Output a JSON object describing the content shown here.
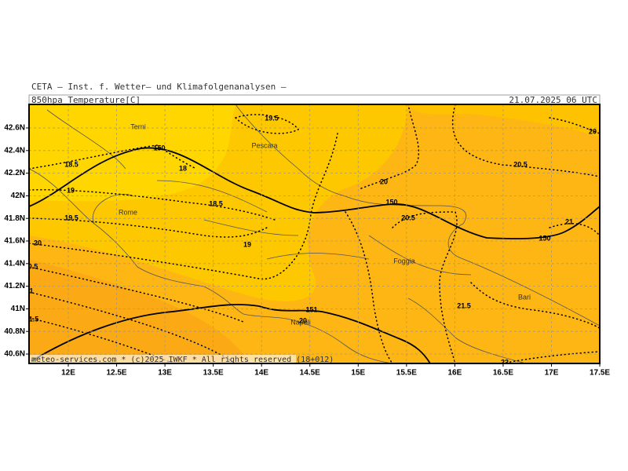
{
  "header": {
    "title": "CETA – Inst. f. Wetter– und Klimafolgenanalysen –",
    "field": "850hpa_Temperature[C]",
    "time": "21.07.2025 06 UTC"
  },
  "footer": "meteo-services.com * (c)2025 IWKF * All rights reserved (18+012)",
  "lat_ticks": [
    {
      "value": 42.6,
      "label": "42.6N"
    },
    {
      "value": 42.4,
      "label": "42.4N"
    },
    {
      "value": 42.2,
      "label": "42.2N"
    },
    {
      "value": 42,
      "label": "42N"
    },
    {
      "value": 41.8,
      "label": "41.8N"
    },
    {
      "value": 41.6,
      "label": "41.6N"
    },
    {
      "value": 41.4,
      "label": "41.4N"
    },
    {
      "value": 41.2,
      "label": "41.2N"
    },
    {
      "value": 41,
      "label": "41N"
    },
    {
      "value": 40.8,
      "label": "40.8N"
    },
    {
      "value": 40.6,
      "label": "40.6N"
    }
  ],
  "lon_ticks": [
    {
      "value": 12,
      "label": "12E"
    },
    {
      "value": 12.5,
      "label": "12.5E"
    },
    {
      "value": 13,
      "label": "13E"
    },
    {
      "value": 13.5,
      "label": "13.5E"
    },
    {
      "value": 14,
      "label": "14E"
    },
    {
      "value": 14.5,
      "label": "14.5E"
    },
    {
      "value": 15,
      "label": "15E"
    },
    {
      "value": 15.5,
      "label": "15.5E"
    },
    {
      "value": 16,
      "label": "16E"
    },
    {
      "value": 16.5,
      "label": "16.5E"
    },
    {
      "value": 17,
      "label": "17E"
    },
    {
      "value": 17.5,
      "label": "17.5E"
    }
  ],
  "cities": [
    "Terni",
    "Pescara",
    "Rome",
    "Foggia",
    "Napoli",
    "Bari"
  ],
  "contour_labels": [
    "19.5",
    "18",
    "150",
    "18.5",
    "18.5",
    "19",
    "19.5",
    "20",
    "19",
    "20",
    "150",
    "20.5",
    "20.5",
    "20",
    "21",
    "150",
    "151",
    "20",
    "21.5",
    "22",
    "0.5",
    "1",
    "1.5"
  ]
}
